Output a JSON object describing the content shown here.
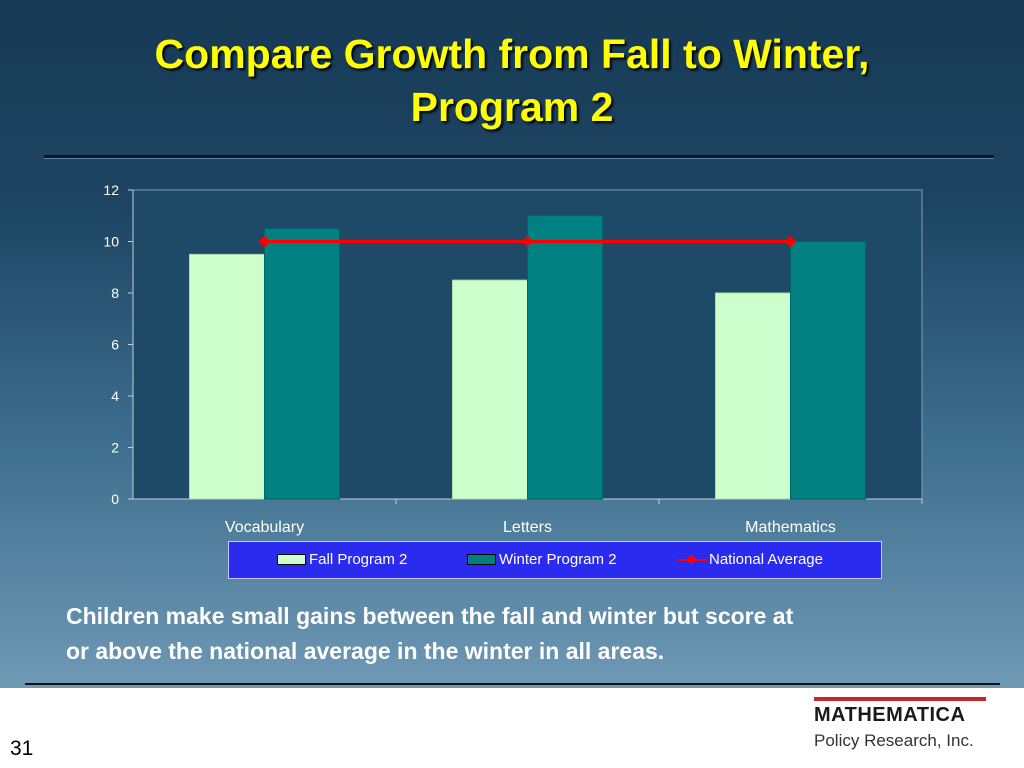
{
  "slide": {
    "title_line1": "Compare Growth from Fall to Winter,",
    "title_line2": "Program 2",
    "caption_line1": "Children make small gains between the fall and winter but score at",
    "caption_line2": "or above the national average in the winter in all areas.",
    "page_number": "31",
    "logo_main": "MATHEMATICA",
    "logo_sub": "Policy Research, Inc."
  },
  "chart_data": {
    "type": "bar",
    "categories": [
      "Vocabulary",
      "Letters",
      "Mathematics"
    ],
    "series": [
      {
        "name": "Fall Program 2",
        "values": [
          9.5,
          8.5,
          8
        ],
        "color": "#ccffcc"
      },
      {
        "name": "Winter Program 2",
        "values": [
          10.5,
          11,
          10
        ],
        "color": "#008080"
      }
    ],
    "line_series": {
      "name": "National Average",
      "values": [
        10,
        10,
        10
      ],
      "color": "#ff0000"
    },
    "ylim": [
      0,
      12
    ],
    "yticks": [
      "0",
      "2",
      "4",
      "6",
      "8",
      "10",
      "12"
    ],
    "grid": false,
    "legend": "bottom",
    "plot_background": "#1e4a68"
  }
}
